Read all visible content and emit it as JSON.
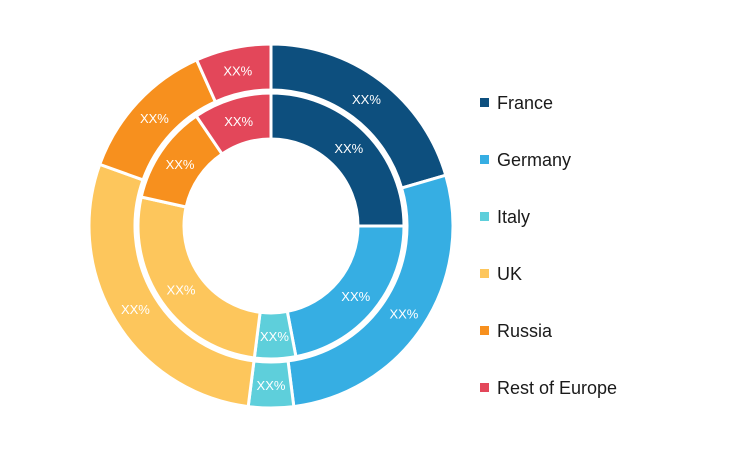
{
  "chart_data": {
    "type": "pie",
    "subtype": "double-donut",
    "categories": [
      "France",
      "Germany",
      "Italy",
      "UK",
      "Russia",
      "Rest of Europe"
    ],
    "colors": [
      "#0d4f7e",
      "#36aee3",
      "#5ecfdb",
      "#fdc65c",
      "#f7901e",
      "#e3475a"
    ],
    "series": [
      {
        "ring": "outer",
        "values": [
          20.5,
          27.5,
          4.0,
          28.5,
          12.8,
          6.7
        ],
        "labels": [
          "XX%",
          "XX%",
          "XX%",
          "XX%",
          "XX%",
          "XX%"
        ]
      },
      {
        "ring": "inner",
        "values": [
          25.0,
          22.0,
          5.0,
          26.5,
          12.0,
          9.5
        ],
        "labels": [
          "XX%",
          "XX%",
          "XX%",
          "XX%",
          "XX%",
          "XX%"
        ]
      }
    ],
    "legend_position": "right",
    "title": ""
  }
}
